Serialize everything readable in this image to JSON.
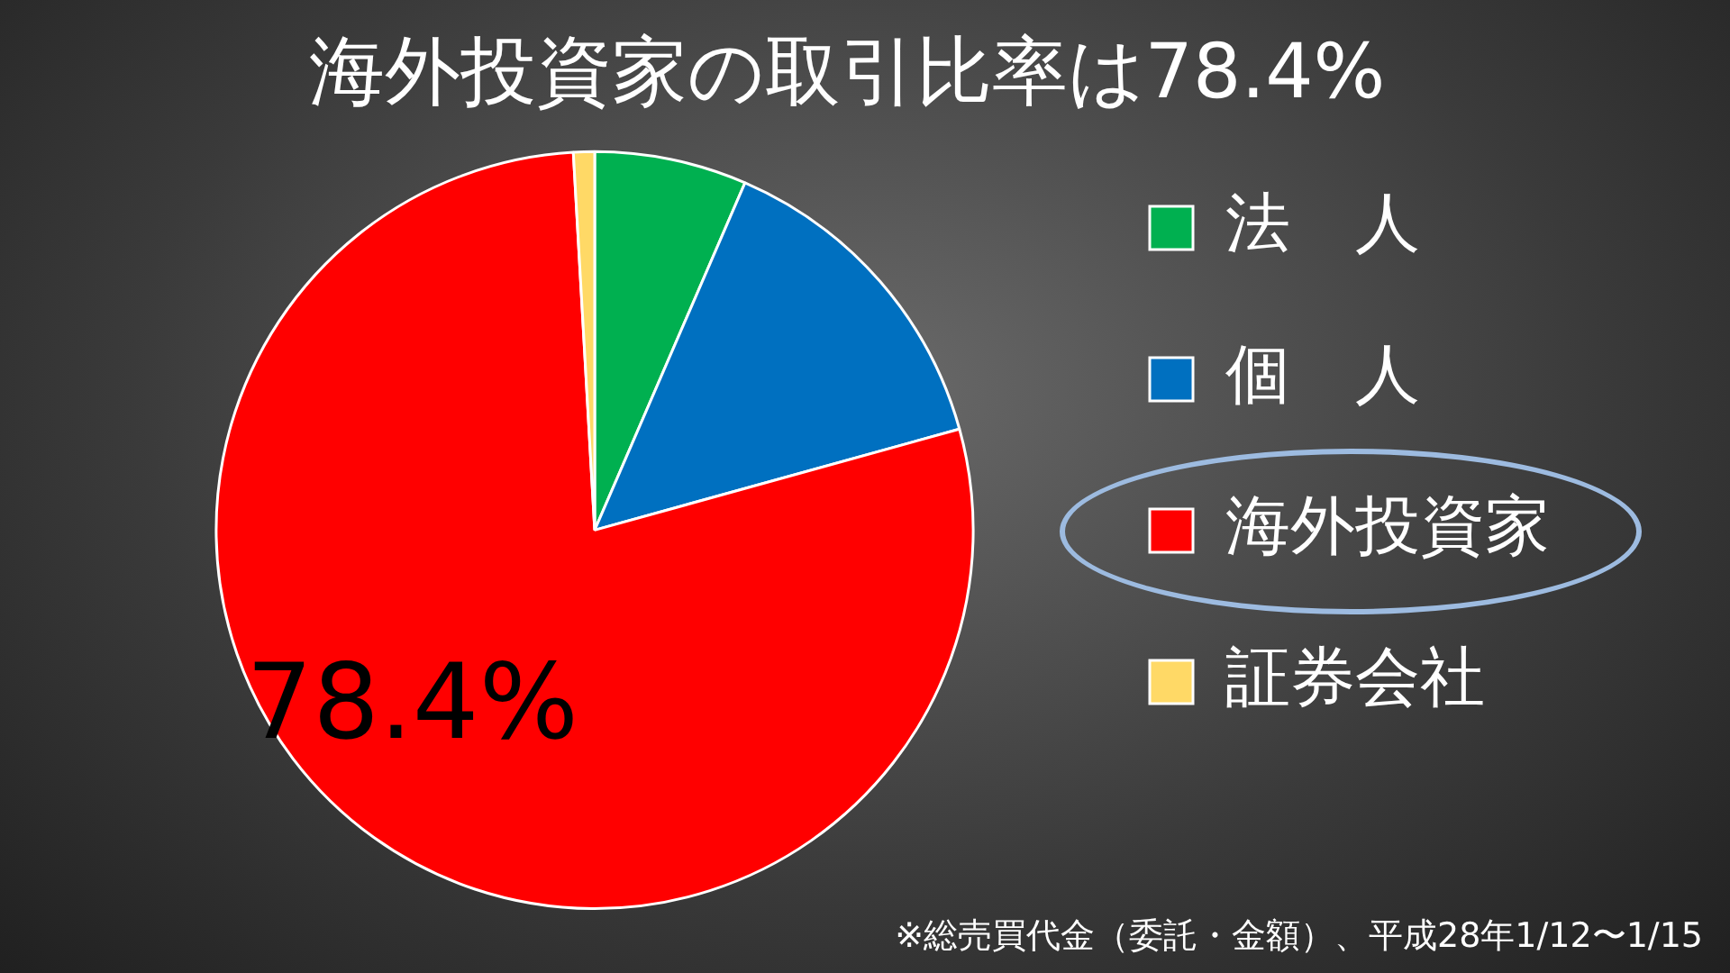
{
  "chart_data": {
    "type": "pie",
    "title": "海外投資家の取引比率は78.4%",
    "categories": [
      "法　人",
      "個　人",
      "海外投資家",
      "証券会社"
    ],
    "values": [
      6.5,
      14.2,
      78.4,
      0.9
    ],
    "colors": [
      "#00b050",
      "#0070c0",
      "#ff0000",
      "#ffd966"
    ],
    "value_labels": [
      null,
      null,
      "78.4%",
      null
    ],
    "legend": "right",
    "annotations": [
      "※総売買代金（委託・金額）、平成28年1/12〜1/15"
    ]
  }
}
